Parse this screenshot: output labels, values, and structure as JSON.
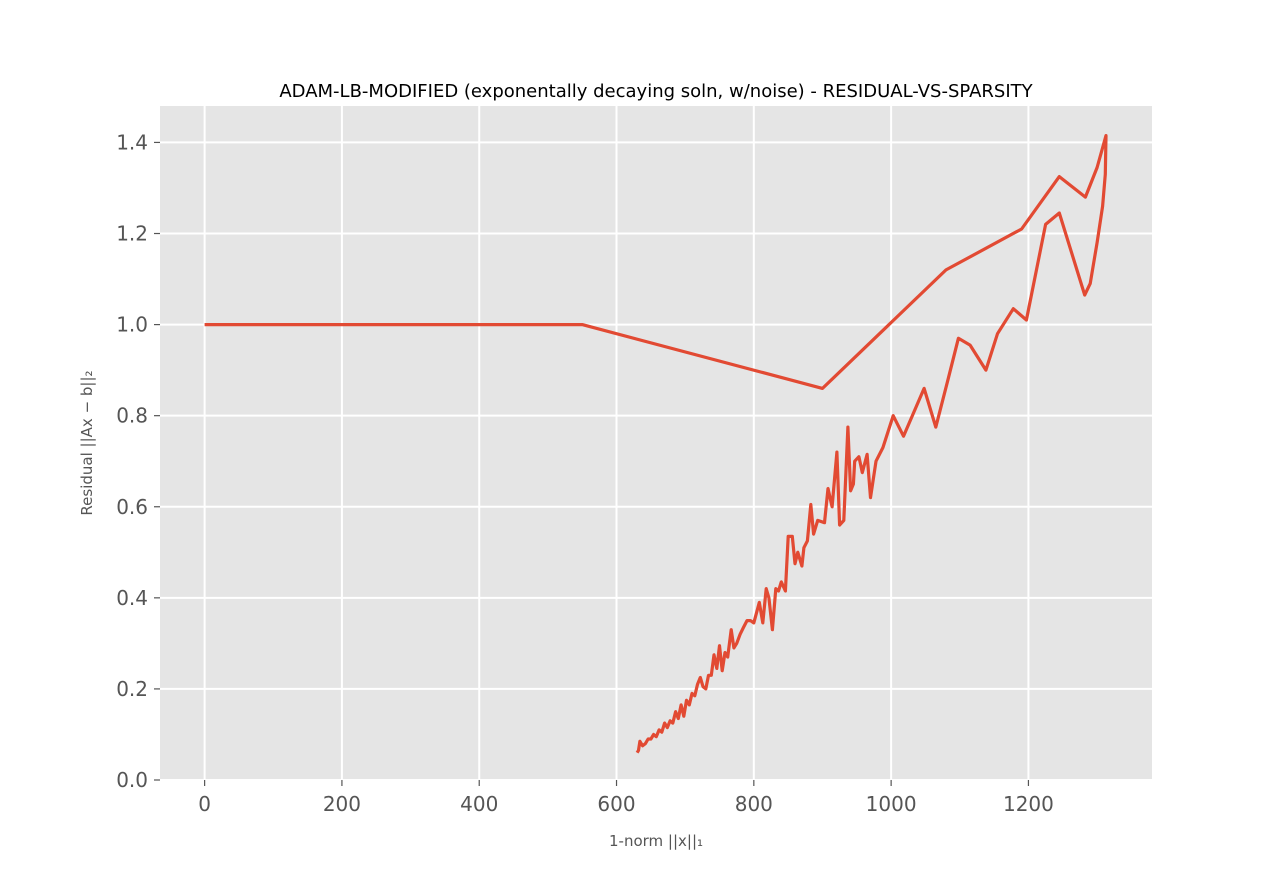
{
  "chart_data": {
    "type": "line",
    "title": "ADAM-LB-MODIFIED (exponentally decaying soln, w/noise) - RESIDUAL-VS-SPARSITY",
    "xlabel": "1-norm ||x||₁",
    "ylabel": "Residual ||Ax − b||₂",
    "xlim": [
      -65,
      1380
    ],
    "ylim": [
      0,
      1.48
    ],
    "xticks": [
      0,
      200,
      400,
      600,
      800,
      1000,
      1200
    ],
    "yticks": [
      0.0,
      0.2,
      0.4,
      0.6,
      0.8,
      1.0,
      1.2,
      1.4
    ],
    "xtick_labels": [
      "0",
      "200",
      "400",
      "600",
      "800",
      "1000",
      "1200"
    ],
    "ytick_labels": [
      "0.0",
      "0.2",
      "0.4",
      "0.6",
      "0.8",
      "1.0",
      "1.2",
      "1.4"
    ],
    "grid": true,
    "style": "ggplot",
    "series": [
      {
        "color": "#E24A33",
        "points": [
          [
            0,
            1.0
          ],
          [
            550,
            1.0
          ],
          [
            900,
            0.86
          ],
          [
            1080,
            1.12
          ],
          [
            1190,
            1.21
          ],
          [
            1245,
            1.325
          ],
          [
            1283,
            1.28
          ],
          [
            1300,
            1.345
          ],
          [
            1313,
            1.415
          ],
          [
            1312,
            1.33
          ],
          [
            1308,
            1.26
          ],
          [
            1300,
            1.18
          ],
          [
            1290,
            1.09
          ],
          [
            1282,
            1.065
          ],
          [
            1245,
            1.245
          ],
          [
            1225,
            1.22
          ],
          [
            1197,
            1.01
          ],
          [
            1178,
            1.035
          ],
          [
            1155,
            0.98
          ],
          [
            1138,
            0.9
          ],
          [
            1115,
            0.955
          ],
          [
            1098,
            0.97
          ],
          [
            1083,
            0.88
          ],
          [
            1065,
            0.775
          ],
          [
            1048,
            0.86
          ],
          [
            1018,
            0.755
          ],
          [
            1003,
            0.8
          ],
          [
            988,
            0.73
          ],
          [
            978,
            0.7
          ],
          [
            970,
            0.62
          ],
          [
            965,
            0.715
          ],
          [
            958,
            0.675
          ],
          [
            953,
            0.71
          ],
          [
            947,
            0.7
          ],
          [
            945,
            0.65
          ],
          [
            941,
            0.635
          ],
          [
            937,
            0.775
          ],
          [
            931,
            0.57
          ],
          [
            925,
            0.56
          ],
          [
            921,
            0.72
          ],
          [
            914,
            0.6
          ],
          [
            908,
            0.64
          ],
          [
            903,
            0.565
          ],
          [
            893,
            0.57
          ],
          [
            887,
            0.54
          ],
          [
            883,
            0.605
          ],
          [
            878,
            0.525
          ],
          [
            873,
            0.51
          ],
          [
            870,
            0.47
          ],
          [
            864,
            0.5
          ],
          [
            860,
            0.475
          ],
          [
            856,
            0.535
          ],
          [
            850,
            0.535
          ],
          [
            846,
            0.415
          ],
          [
            840,
            0.435
          ],
          [
            836,
            0.415
          ],
          [
            832,
            0.42
          ],
          [
            827,
            0.33
          ],
          [
            822,
            0.4
          ],
          [
            818,
            0.42
          ],
          [
            813,
            0.345
          ],
          [
            808,
            0.39
          ],
          [
            800,
            0.345
          ],
          [
            795,
            0.35
          ],
          [
            790,
            0.35
          ],
          [
            785,
            0.335
          ],
          [
            780,
            0.32
          ],
          [
            775,
            0.3
          ],
          [
            771,
            0.29
          ],
          [
            767,
            0.33
          ],
          [
            762,
            0.27
          ],
          [
            758,
            0.28
          ],
          [
            754,
            0.24
          ],
          [
            750,
            0.295
          ],
          [
            746,
            0.245
          ],
          [
            742,
            0.275
          ],
          [
            738,
            0.23
          ],
          [
            734,
            0.23
          ],
          [
            730,
            0.2
          ],
          [
            726,
            0.205
          ],
          [
            722,
            0.225
          ],
          [
            718,
            0.21
          ],
          [
            714,
            0.185
          ],
          [
            710,
            0.19
          ],
          [
            706,
            0.165
          ],
          [
            702,
            0.175
          ],
          [
            698,
            0.14
          ],
          [
            694,
            0.165
          ],
          [
            690,
            0.135
          ],
          [
            686,
            0.15
          ],
          [
            682,
            0.125
          ],
          [
            678,
            0.13
          ],
          [
            674,
            0.115
          ],
          [
            670,
            0.125
          ],
          [
            666,
            0.105
          ],
          [
            662,
            0.11
          ],
          [
            658,
            0.095
          ],
          [
            654,
            0.1
          ],
          [
            650,
            0.09
          ],
          [
            646,
            0.09
          ],
          [
            642,
            0.08
          ],
          [
            638,
            0.075
          ],
          [
            634,
            0.085
          ],
          [
            632,
            0.065
          ],
          [
            630,
            0.06
          ]
        ]
      }
    ]
  }
}
